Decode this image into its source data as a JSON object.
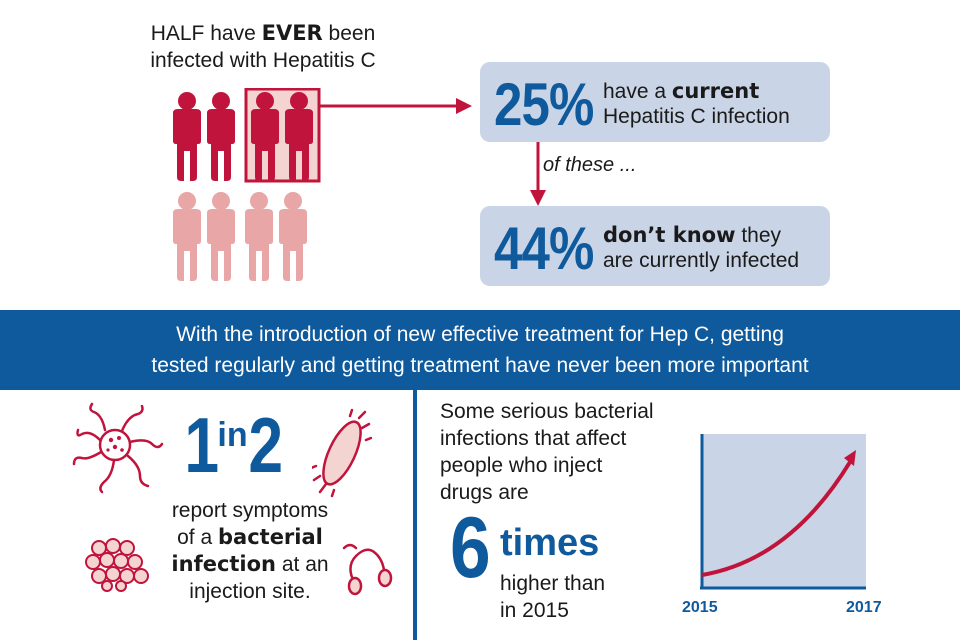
{
  "top": {
    "half_line1_pre": "HALF have ",
    "half_line1_bold": "EVER",
    "half_line1_post": " been",
    "half_line2": "infected with Hepatitis C",
    "stat1": {
      "percent": "25%",
      "line1_pre": "have a ",
      "line1_bold": "current",
      "line2": "Hepatitis C infection"
    },
    "of_these": "of these ...",
    "stat2": {
      "percent": "44%",
      "line1_bold": "don’t know",
      "line1_post": " they",
      "line2": "are currently infected"
    },
    "people": {
      "total": 8,
      "ever_infected": 4,
      "highlighted": 2
    }
  },
  "banner": {
    "line1": "With the introduction of new effective treatment for Hep C, getting",
    "line2": "tested regularly and getting treatment have never been more important"
  },
  "bottom_left": {
    "num1": "1",
    "word": "in",
    "num2": "2",
    "line1": "report symptoms",
    "line2_pre": "of a ",
    "line2_bold": "bacterial",
    "line3_bold": "infection",
    "line3_post": " at an",
    "line4": "injection site."
  },
  "bottom_right": {
    "line1": "Some serious bacterial",
    "line2": "infections that affect",
    "line3": "people who inject",
    "line4": "drugs are",
    "number": "6",
    "times": "times",
    "line5": "higher than",
    "line6": "in 2015",
    "year_start": "2015",
    "year_end": "2017"
  },
  "colors": {
    "brand_blue": "#0f5a9c",
    "crimson": "#c0143c",
    "pink": "#e8a6a6",
    "light_blue_box": "#c9d4e6"
  },
  "icons": [
    "person-icon",
    "bacteria-flagella-icon",
    "bacillus-icon",
    "cocci-cluster-icon",
    "spirillum-icon",
    "arrow-right-icon",
    "arrow-down-icon",
    "rising-curve-icon"
  ]
}
